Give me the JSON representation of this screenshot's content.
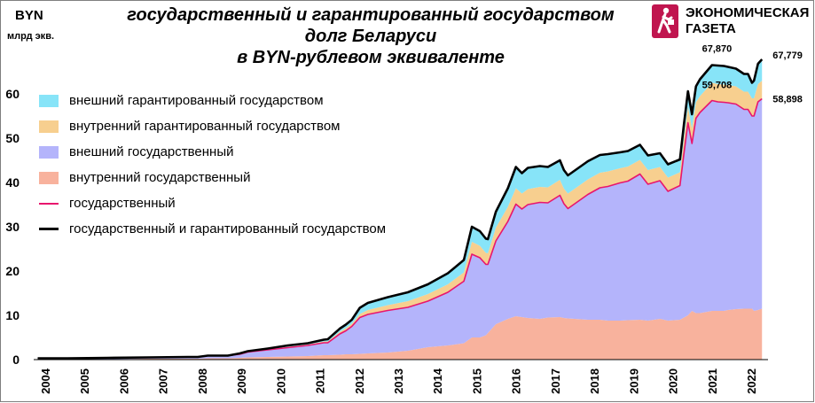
{
  "unit_label": "BYN",
  "unit_sublabel": "млрд экв.",
  "title_lines": [
    "государственный и гарантированный государством",
    "долг Беларуси",
    "в BYN-рублевом  эквиваленте"
  ],
  "logo": {
    "line1": "ЭКОНОМИЧЕСКАЯ",
    "line2": "ГАЗЕТА"
  },
  "colors": {
    "ext_guaranteed": "#87e4f8",
    "int_guaranteed": "#f7cf8f",
    "ext_state": "#b4b4fb",
    "int_state": "#f8b29d",
    "state_line": "#e8166d",
    "total_line": "#000000",
    "logo": "#c0154f"
  },
  "chart_data": {
    "type": "area",
    "ylim": [
      0,
      70
    ],
    "yticks": [
      0,
      10,
      20,
      30,
      40,
      50,
      60
    ],
    "xlim": [
      2003.65,
      2022.0
    ],
    "xtick_labels": [
      "2004",
      "2005",
      "2006",
      "2007",
      "2008",
      "2009",
      "2010",
      "2011",
      "2012",
      "2013",
      "2014",
      "2015",
      "2016",
      "2017",
      "2018",
      "2019",
      "2020",
      "2021",
      "2022"
    ],
    "grid": false,
    "legend_position": "left",
    "x": [
      2003.75,
      2004.5,
      2005.5,
      2006.5,
      2007.5,
      2007.75,
      2008.0,
      2008.5,
      2008.8,
      2009.0,
      2009.5,
      2010.0,
      2010.5,
      2010.9,
      2011.0,
      2011.3,
      2011.45,
      2011.6,
      2011.8,
      2012.0,
      2012.5,
      2013.0,
      2013.5,
      2014.0,
      2014.4,
      2014.6,
      2014.8,
      2014.95,
      2015.0,
      2015.2,
      2015.5,
      2015.7,
      2015.85,
      2016.0,
      2016.3,
      2016.5,
      2016.8,
      2016.9,
      2017.0,
      2017.5,
      2017.8,
      2018.0,
      2018.3,
      2018.5,
      2018.8,
      2019.0,
      2019.3,
      2019.5,
      2019.8,
      2019.9,
      2020.0,
      2020.1,
      2020.2,
      2020.3,
      2020.6,
      2020.75,
      2020.9,
      2021.0,
      2021.2,
      2021.4,
      2021.5,
      2021.6,
      2021.65,
      2021.75,
      2021.85
    ],
    "series": [
      {
        "name": "внутренний государственный",
        "values": [
          0.1,
          0.1,
          0.1,
          0.2,
          0.2,
          0.2,
          0.3,
          0.3,
          0.4,
          0.5,
          0.6,
          0.7,
          0.8,
          1.0,
          1.0,
          1.1,
          1.2,
          1.2,
          1.3,
          1.4,
          1.6,
          2.0,
          2.8,
          3.2,
          3.7,
          5.0,
          5.0,
          5.5,
          6.0,
          8.0,
          9.2,
          9.8,
          9.6,
          9.4,
          9.2,
          9.5,
          9.6,
          9.4,
          9.3,
          9.0,
          9.0,
          8.8,
          8.8,
          8.9,
          9.0,
          8.8,
          9.2,
          8.8,
          9.0,
          9.5,
          10.0,
          11.0,
          10.5,
          10.5,
          11.0,
          11.0,
          11.0,
          11.2,
          11.4,
          11.5,
          11.5,
          11.5,
          11.0,
          11.2,
          11.5
        ]
      },
      {
        "name": "внешний государственный",
        "values": [
          0.2,
          0.2,
          0.3,
          0.3,
          0.4,
          0.4,
          0.6,
          0.6,
          0.8,
          1.2,
          1.6,
          2.0,
          2.4,
          2.8,
          2.8,
          4.7,
          5.3,
          6.3,
          8.2,
          8.8,
          9.5,
          9.8,
          10.4,
          12.0,
          14.0,
          18.8,
          18.0,
          16.0,
          15.5,
          18.8,
          22.0,
          25.3,
          24.4,
          25.6,
          26.3,
          25.9,
          27.5,
          25.8,
          24.8,
          28.3,
          29.8,
          30.3,
          31.1,
          31.4,
          32.9,
          30.8,
          31.2,
          29.2,
          30.3,
          37.1,
          43.5,
          37.8,
          44.0,
          45.3,
          47.5,
          47.2,
          47.1,
          46.8,
          46.3,
          45.0,
          45.0,
          43.5,
          44.0,
          47.0,
          47.4
        ]
      },
      {
        "name": "внутренний гарантированный государством",
        "values": [
          0.0,
          0.0,
          0.0,
          0.0,
          0.0,
          0.0,
          0.0,
          0.0,
          0.1,
          0.1,
          0.1,
          0.2,
          0.2,
          0.3,
          0.3,
          0.5,
          0.6,
          0.6,
          0.8,
          1.0,
          1.2,
          1.4,
          1.6,
          1.8,
          2.0,
          2.8,
          2.7,
          2.6,
          2.5,
          3.0,
          3.3,
          3.6,
          3.5,
          3.5,
          3.5,
          3.5,
          3.5,
          3.4,
          3.4,
          3.4,
          3.4,
          3.4,
          3.3,
          3.3,
          3.2,
          3.2,
          3.1,
          3.1,
          3.0,
          3.4,
          3.6,
          3.4,
          3.6,
          3.7,
          4.0,
          4.0,
          4.0,
          4.0,
          4.0,
          4.0,
          4.0,
          4.0,
          4.0,
          4.0,
          4.1
        ]
      },
      {
        "name": "внешний гарантированный государством",
        "values": [
          0.0,
          0.0,
          0.0,
          0.0,
          0.0,
          0.0,
          0.0,
          0.0,
          0.1,
          0.1,
          0.2,
          0.3,
          0.3,
          0.4,
          0.5,
          0.7,
          0.8,
          0.9,
          1.4,
          1.6,
          1.8,
          2.0,
          2.2,
          2.5,
          2.8,
          3.4,
          3.3,
          3.2,
          3.2,
          3.6,
          4.2,
          4.8,
          4.6,
          4.8,
          4.7,
          4.6,
          4.4,
          4.2,
          4.1,
          4.1,
          4.0,
          3.9,
          3.6,
          3.5,
          3.4,
          3.3,
          3.1,
          3.0,
          2.9,
          3.2,
          3.5,
          3.2,
          3.6,
          3.8,
          4.0,
          4.2,
          4.2,
          4.1,
          4.0,
          4.0,
          4.0,
          3.5,
          4.0,
          4.6,
          4.8
        ]
      },
      {
        "name": "государственный",
        "values": [
          0.3,
          0.3,
          0.4,
          0.5,
          0.6,
          0.6,
          0.9,
          0.9,
          1.2,
          1.7,
          2.2,
          2.7,
          3.2,
          3.8,
          3.8,
          5.8,
          6.5,
          7.5,
          9.5,
          10.2,
          11.1,
          11.8,
          13.2,
          15.2,
          17.7,
          23.8,
          23.0,
          21.5,
          21.5,
          26.8,
          31.2,
          35.1,
          34.0,
          35.0,
          35.5,
          35.4,
          37.1,
          35.2,
          34.1,
          37.3,
          38.8,
          39.1,
          39.9,
          40.3,
          41.9,
          39.6,
          40.4,
          38.0,
          39.3,
          46.6,
          53.5,
          48.8,
          54.5,
          55.8,
          58.5,
          58.2,
          58.1,
          58.0,
          57.7,
          56.5,
          56.5,
          55.0,
          55.0,
          58.2,
          58.9
        ]
      },
      {
        "name": "государственный и гарантированный государством",
        "values": [
          0.3,
          0.3,
          0.4,
          0.5,
          0.6,
          0.6,
          0.9,
          0.9,
          1.4,
          1.9,
          2.5,
          3.2,
          3.7,
          4.5,
          4.6,
          7.0,
          7.9,
          9.0,
          11.7,
          12.8,
          14.1,
          15.2,
          17.0,
          19.5,
          22.5,
          30.0,
          29.0,
          27.3,
          27.2,
          33.4,
          38.7,
          43.5,
          42.1,
          43.3,
          43.7,
          43.5,
          45.0,
          42.8,
          41.6,
          44.8,
          46.2,
          46.4,
          46.8,
          47.1,
          48.5,
          46.1,
          46.6,
          44.1,
          45.2,
          53.2,
          60.6,
          55.4,
          61.7,
          63.3,
          66.5,
          66.4,
          66.3,
          66.1,
          65.7,
          64.5,
          64.5,
          62.5,
          63.0,
          66.8,
          67.8
        ]
      }
    ],
    "annotations": [
      {
        "text": "67,870",
        "x": 2020.75,
        "y": 67.87
      },
      {
        "text": "59,708",
        "x": 2020.75,
        "y": 59.708
      },
      {
        "text": "67,779",
        "x": 2021.85,
        "y": 67.779
      },
      {
        "text": "58,898",
        "x": 2021.85,
        "y": 58.898
      }
    ]
  }
}
